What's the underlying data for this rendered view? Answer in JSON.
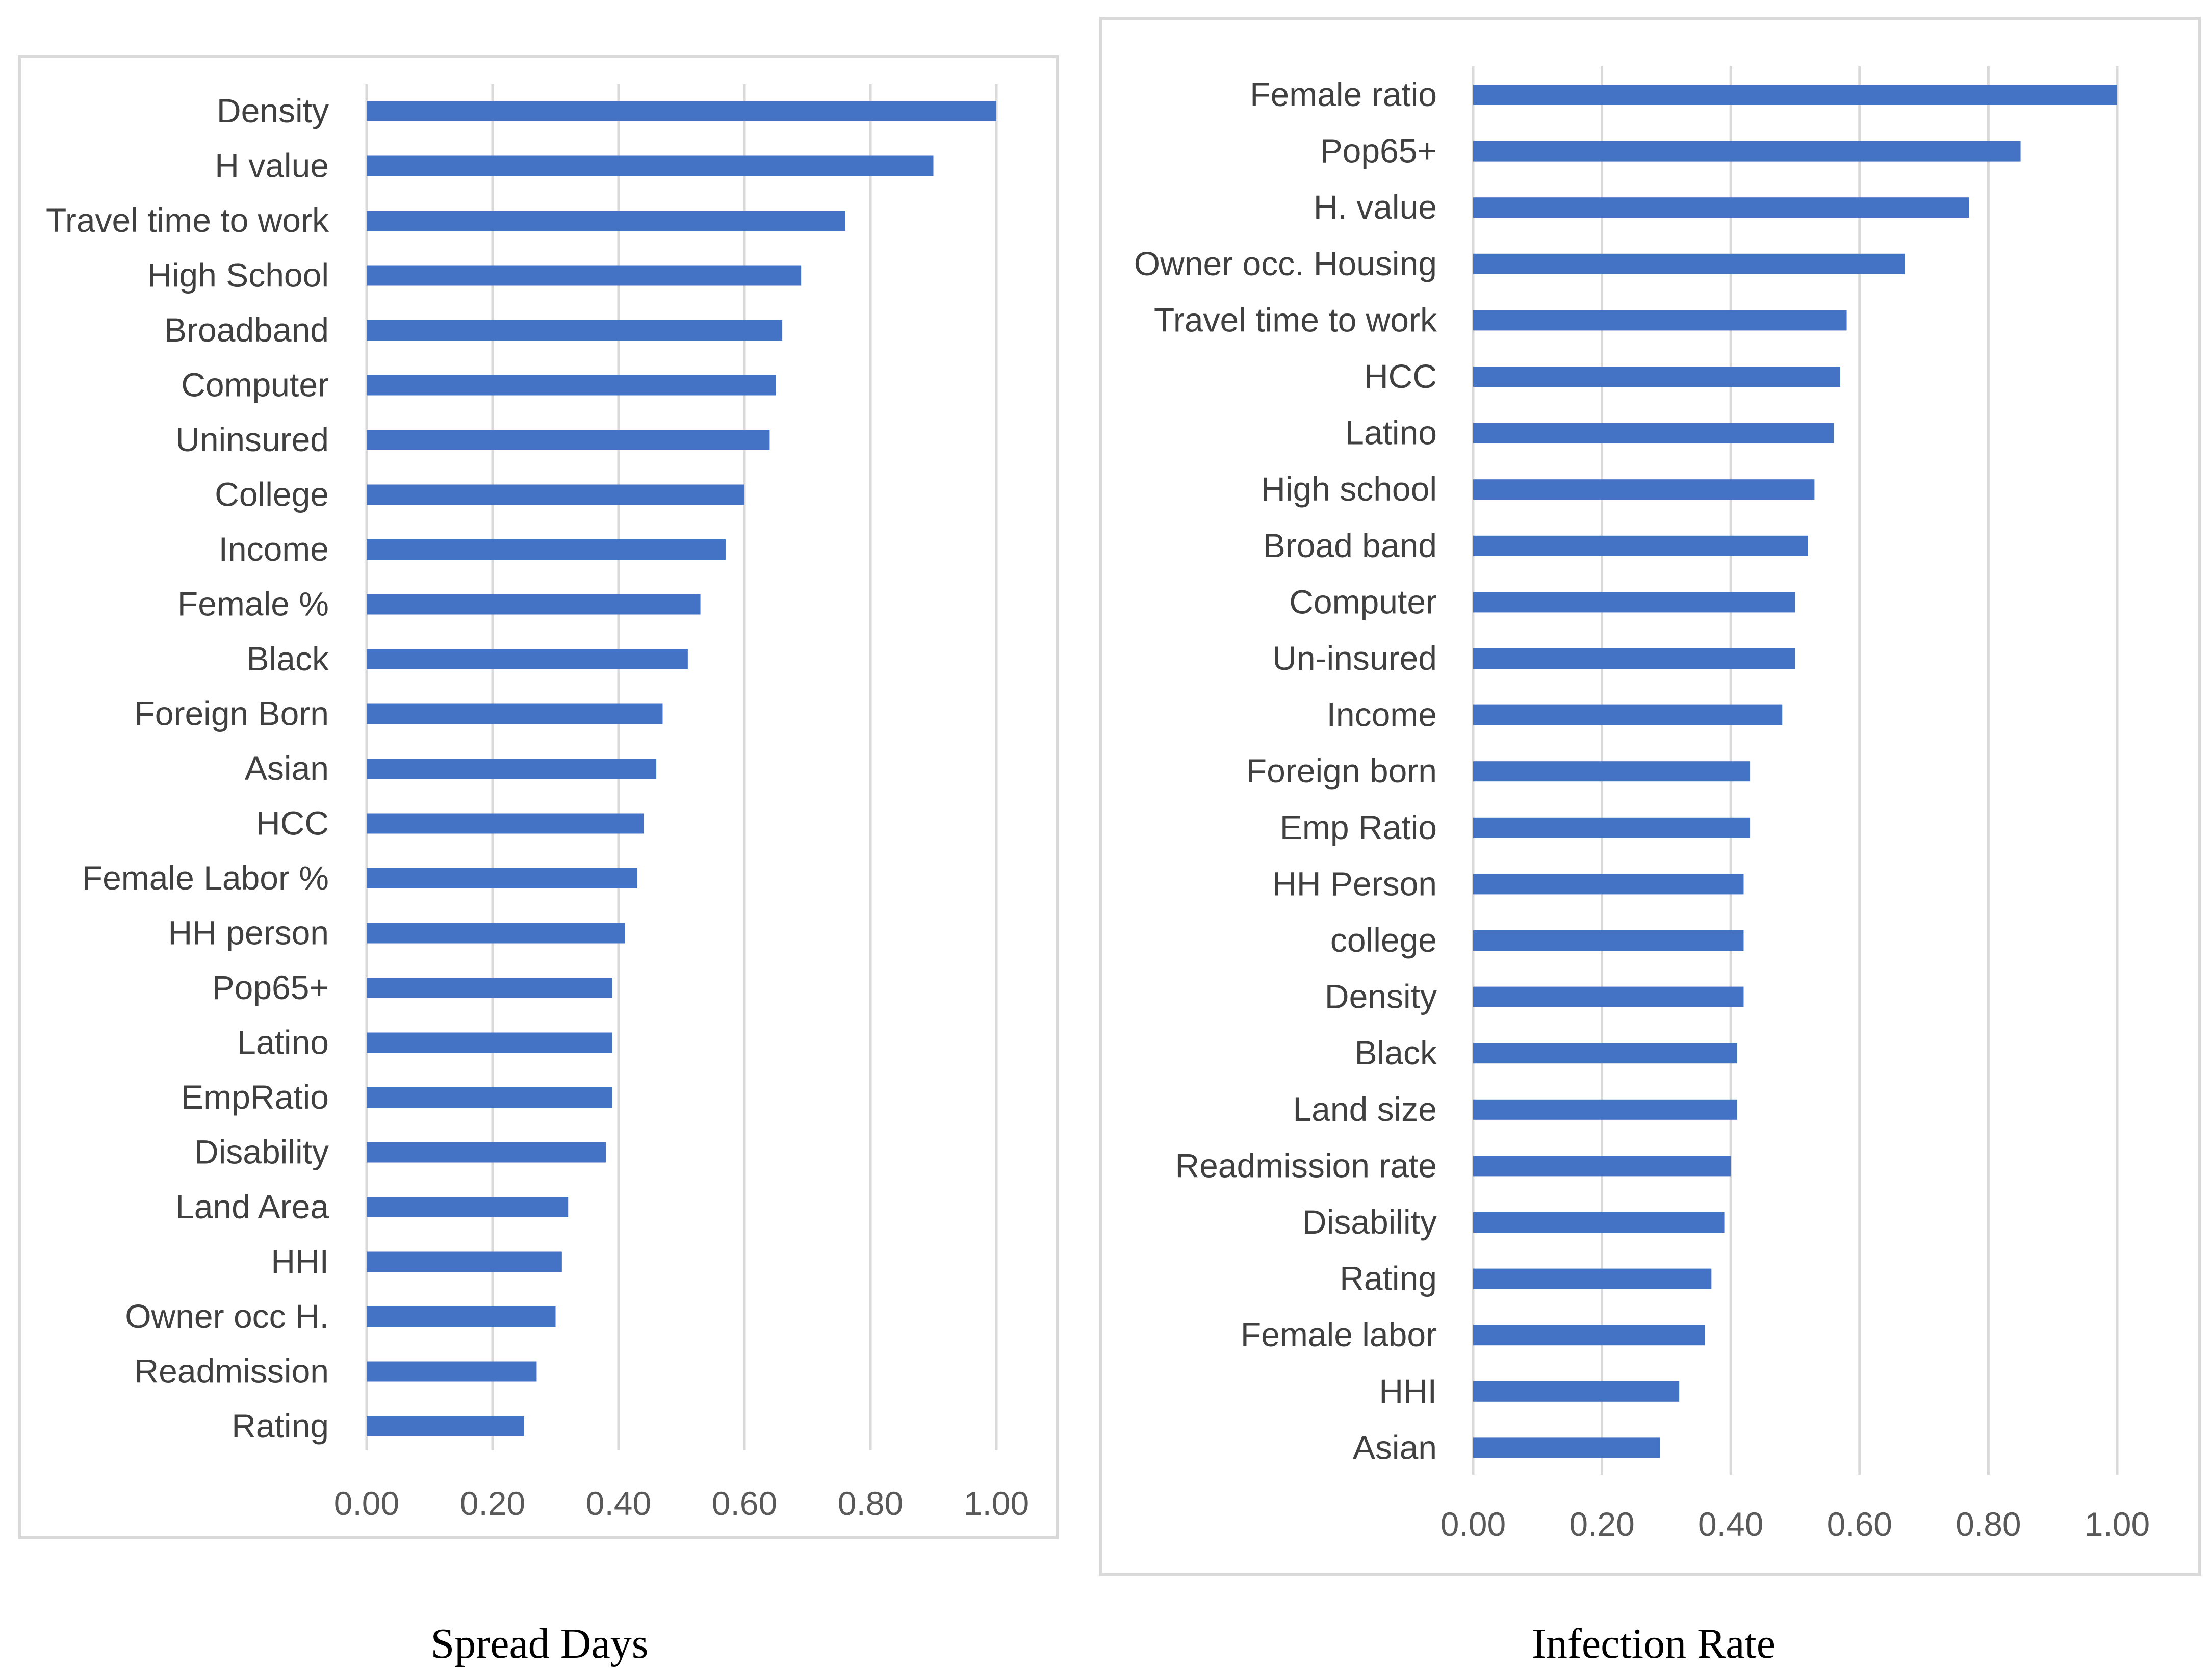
{
  "chart_data": [
    {
      "type": "bar",
      "orientation": "horizontal",
      "caption": "Spread Days",
      "categories": [
        "Density",
        "H value",
        "Travel time to work",
        "High School",
        "Broadband",
        "Computer",
        "Uninsured",
        "College",
        "Income",
        "Female %",
        "Black",
        "Foreign Born",
        "Asian",
        "HCC",
        "Female Labor %",
        "HH person",
        "Pop65+",
        "Latino",
        "EmpRatio",
        "Disability",
        "Land Area",
        "HHI",
        "Owner occ H.",
        "Readmission",
        "Rating"
      ],
      "values": [
        1.0,
        0.9,
        0.76,
        0.69,
        0.66,
        0.65,
        0.64,
        0.6,
        0.57,
        0.53,
        0.51,
        0.47,
        0.46,
        0.44,
        0.43,
        0.41,
        0.39,
        0.39,
        0.39,
        0.38,
        0.32,
        0.31,
        0.3,
        0.27,
        0.25
      ],
      "xticks": [
        "0.00",
        "0.20",
        "0.40",
        "0.60",
        "0.80",
        "1.00"
      ],
      "xlim": [
        0,
        1
      ],
      "grid": true,
      "color": "#4472C4"
    },
    {
      "type": "bar",
      "orientation": "horizontal",
      "caption": "Infection Rate",
      "categories": [
        "Female ratio",
        "Pop65+",
        "H. value",
        "Owner occ. Housing",
        "Travel time to work",
        "HCC",
        "Latino",
        "High school",
        "Broad band",
        "Computer",
        "Un-insured",
        "Income",
        "Foreign born",
        "Emp Ratio",
        "HH Person",
        "college",
        "Density",
        "Black",
        "Land size",
        "Readmission rate",
        "Disability",
        "Rating",
        "Female labor",
        "HHI",
        "Asian"
      ],
      "values": [
        1.0,
        0.85,
        0.77,
        0.67,
        0.58,
        0.57,
        0.56,
        0.53,
        0.52,
        0.5,
        0.5,
        0.48,
        0.43,
        0.43,
        0.42,
        0.42,
        0.42,
        0.41,
        0.41,
        0.4,
        0.39,
        0.37,
        0.36,
        0.32,
        0.29
      ],
      "xticks": [
        "0.00",
        "0.20",
        "0.40",
        "0.60",
        "0.80",
        "1.00"
      ],
      "xlim": [
        0,
        1
      ],
      "grid": true,
      "color": "#4472C4"
    }
  ]
}
